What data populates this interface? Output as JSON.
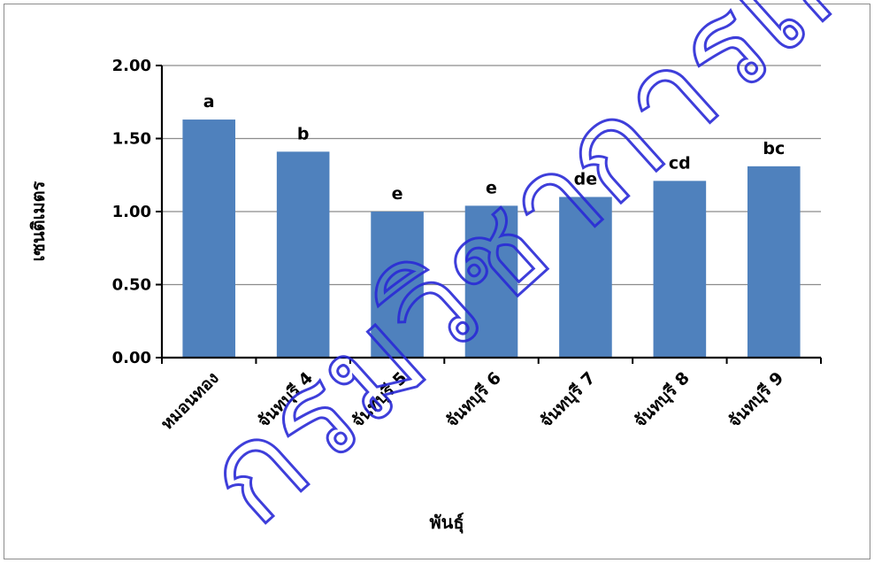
{
  "chart_data": {
    "type": "bar",
    "title": "",
    "xlabel": "พันธุ์",
    "ylabel": "เซนติเมตร",
    "ylim": [
      0,
      2
    ],
    "yticks": [
      "0.00",
      "0.50",
      "1.00",
      "1.50",
      "2.00"
    ],
    "grid": true,
    "legend": "none",
    "categories": [
      "หมอนทอง",
      "จันทบุรี 4",
      "จันทบุรี 5",
      "จันทบุรี 6",
      "จันทบุรี 7",
      "จันทบุรี 8",
      "จันทบุรี 9"
    ],
    "values": [
      1.63,
      1.41,
      1.0,
      1.04,
      1.1,
      1.21,
      1.31
    ],
    "data_labels": [
      "a",
      "b",
      "e",
      "e",
      "de",
      "cd",
      "bc"
    ],
    "bar_color": "#4f81bd"
  },
  "watermark": "กรมวิชาการเกษตร"
}
